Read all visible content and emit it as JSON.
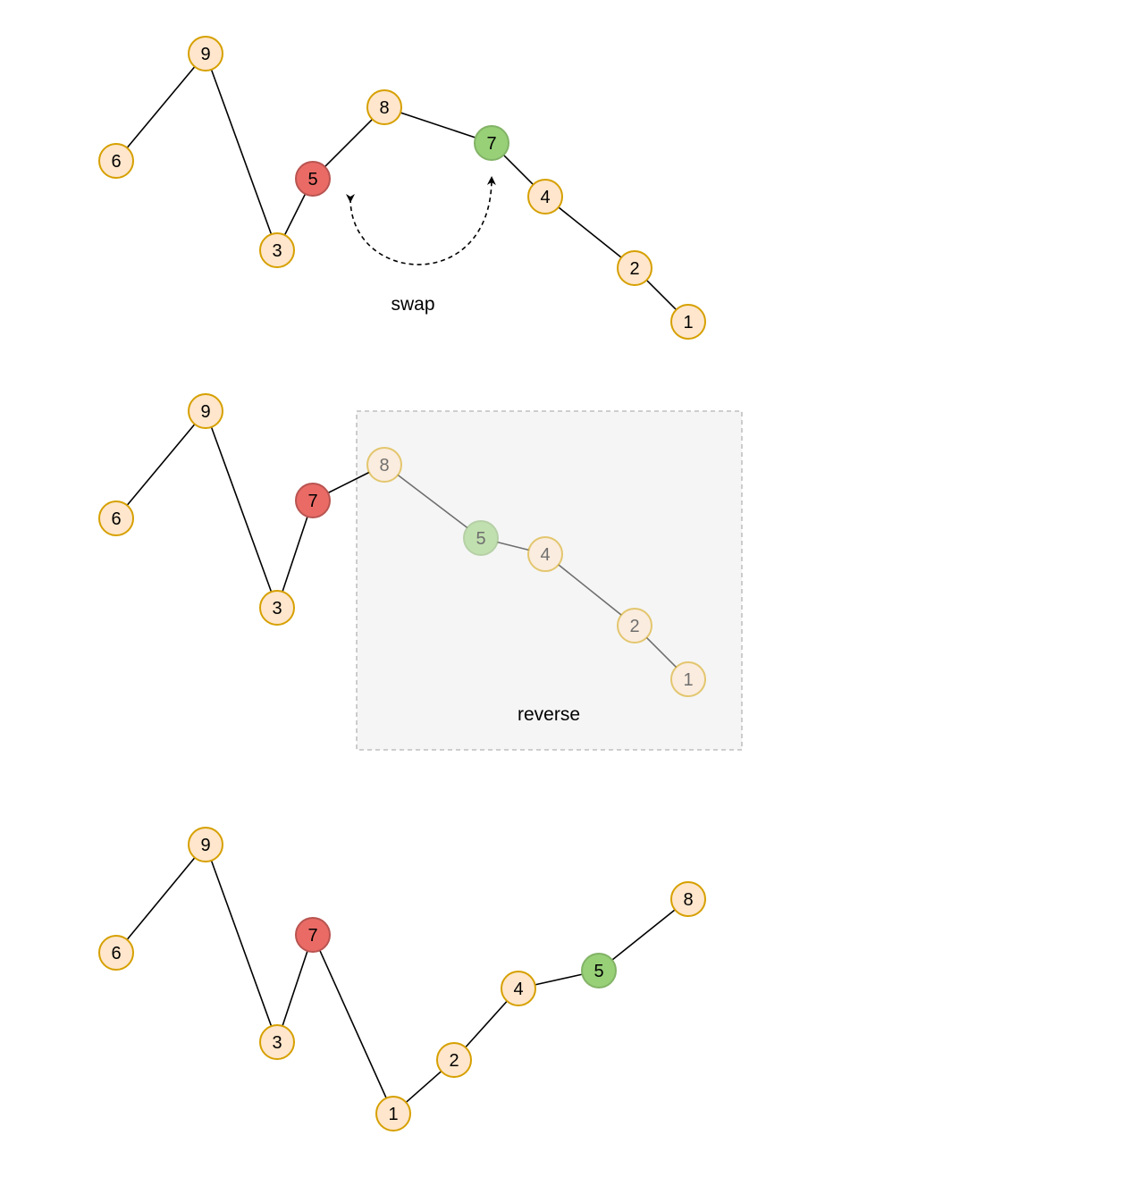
{
  "colors": {
    "default_fill": "#ffe6cc",
    "default_stroke": "#d6a000",
    "red_fill": "#ea6b66",
    "red_stroke": "#b85450",
    "green_fill": "#97d077",
    "green_stroke": "#82b366",
    "edge": "#000000",
    "box_fill": "#f5f5f5",
    "box_stroke": "#b3b3b3"
  },
  "diagrams": [
    {
      "id": "before-swap",
      "nodes": [
        {
          "label": "6",
          "style": "default"
        },
        {
          "label": "9",
          "style": "default"
        },
        {
          "label": "3",
          "style": "default"
        },
        {
          "label": "5",
          "style": "red"
        },
        {
          "label": "8",
          "style": "default"
        },
        {
          "label": "7",
          "style": "green"
        },
        {
          "label": "4",
          "style": "default"
        },
        {
          "label": "2",
          "style": "default"
        },
        {
          "label": "1",
          "style": "default"
        }
      ],
      "caption": "swap"
    },
    {
      "id": "after-swap",
      "nodes": [
        {
          "label": "6",
          "style": "default"
        },
        {
          "label": "9",
          "style": "default"
        },
        {
          "label": "3",
          "style": "default"
        },
        {
          "label": "7",
          "style": "red"
        },
        {
          "label": "8",
          "style": "default",
          "faded": true
        },
        {
          "label": "5",
          "style": "green",
          "faded": true
        },
        {
          "label": "4",
          "style": "default",
          "faded": true
        },
        {
          "label": "2",
          "style": "default",
          "faded": true
        },
        {
          "label": "1",
          "style": "default",
          "faded": true
        }
      ],
      "caption": "reverse"
    },
    {
      "id": "after-reverse",
      "nodes": [
        {
          "label": "6",
          "style": "default"
        },
        {
          "label": "9",
          "style": "default"
        },
        {
          "label": "3",
          "style": "default"
        },
        {
          "label": "7",
          "style": "red"
        },
        {
          "label": "1",
          "style": "default"
        },
        {
          "label": "2",
          "style": "default"
        },
        {
          "label": "4",
          "style": "default"
        },
        {
          "label": "5",
          "style": "green"
        },
        {
          "label": "8",
          "style": "default"
        }
      ]
    }
  ]
}
